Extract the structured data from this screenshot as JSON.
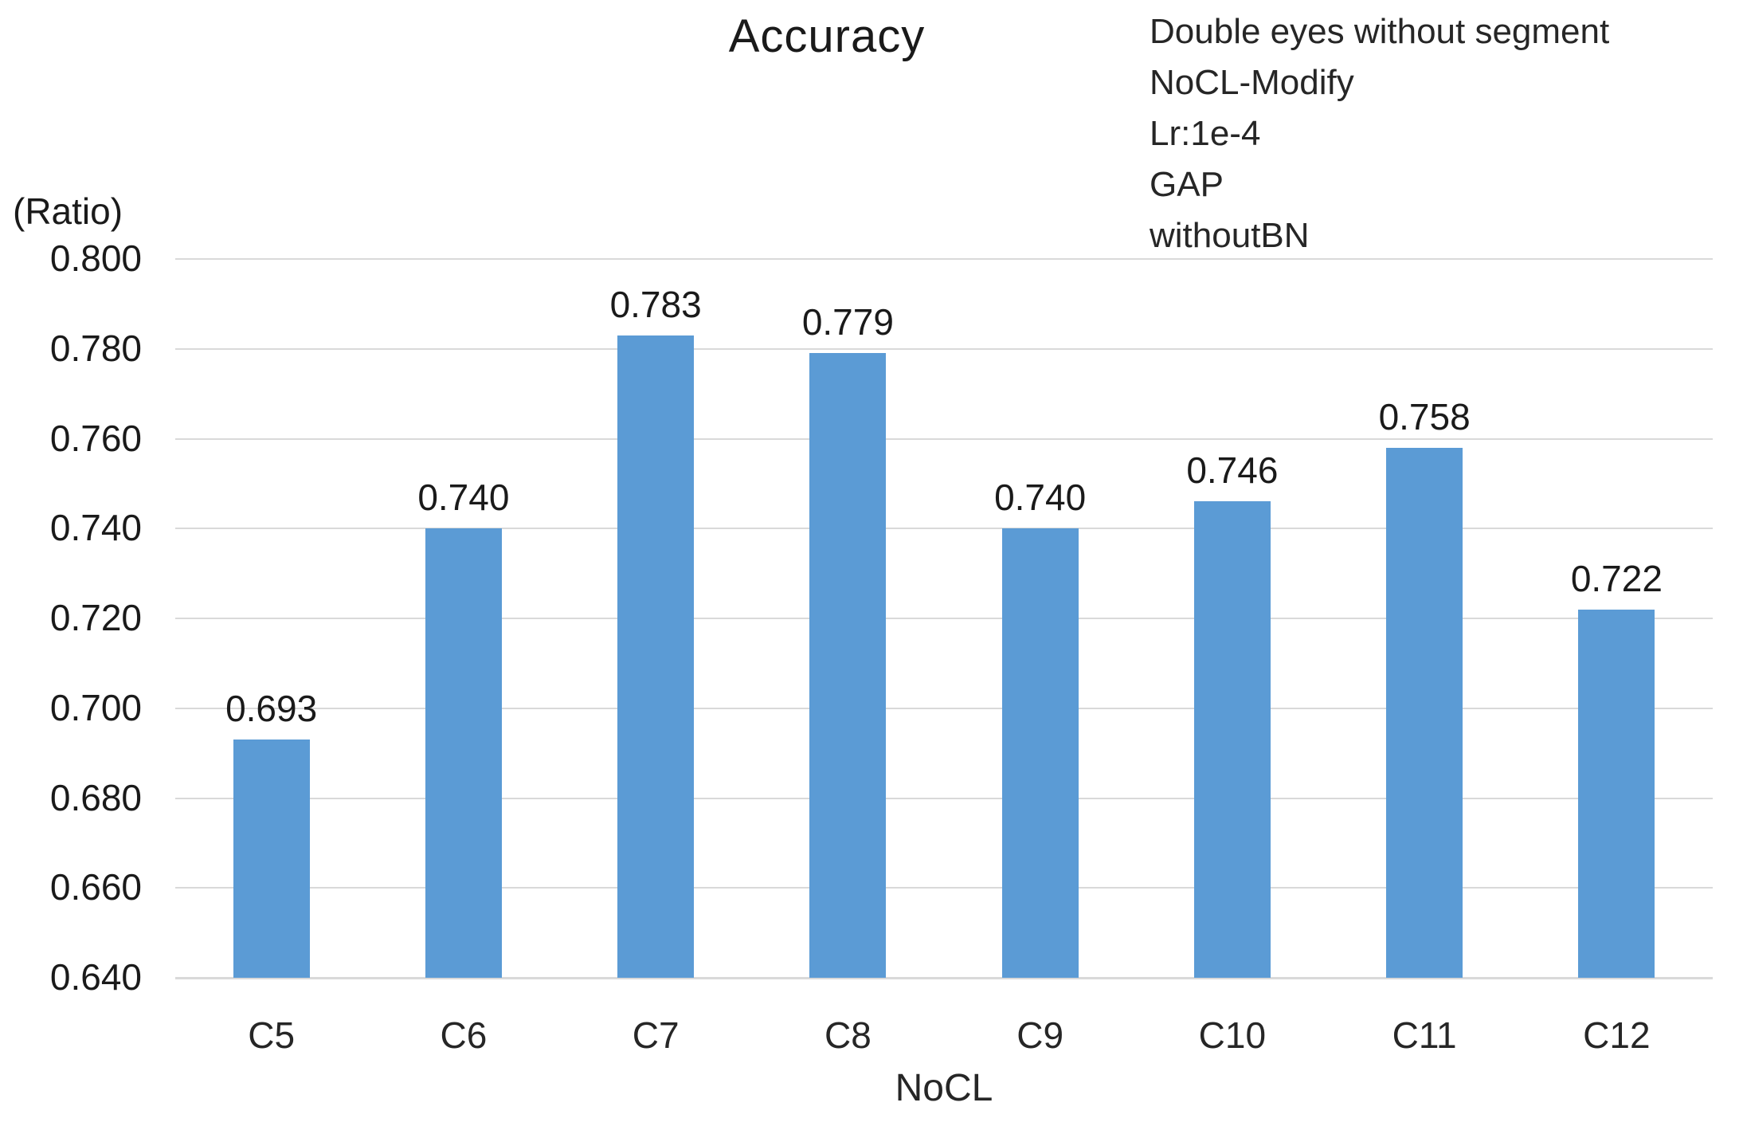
{
  "chart_data": {
    "type": "bar",
    "title": "Accuracy",
    "categories": [
      "C5",
      "C6",
      "C7",
      "C8",
      "C9",
      "C10",
      "C11",
      "C12"
    ],
    "values": [
      0.693,
      0.74,
      0.783,
      0.779,
      0.74,
      0.746,
      0.758,
      0.722
    ],
    "value_labels": [
      "0.693",
      "0.740",
      "0.783",
      "0.779",
      "0.740",
      "0.746",
      "0.758",
      "0.722"
    ],
    "xlabel": "NoCL",
    "ylabel": "(Ratio)",
    "ylim": [
      0.64,
      0.8
    ],
    "ytick_step": 0.02,
    "ytick_labels": [
      "0.800",
      "0.780",
      "0.760",
      "0.740",
      "0.720",
      "0.700",
      "0.680",
      "0.660",
      "0.640"
    ],
    "grid": true,
    "legend_position": "none",
    "annotation_lines": [
      "Double eyes without segment",
      "NoCL-Modify",
      "Lr:1e-4",
      "GAP",
      "withoutBN"
    ],
    "colors": {
      "bar": "#5b9bd5",
      "gridline": "#d9d9d9",
      "text": "#262626"
    }
  }
}
